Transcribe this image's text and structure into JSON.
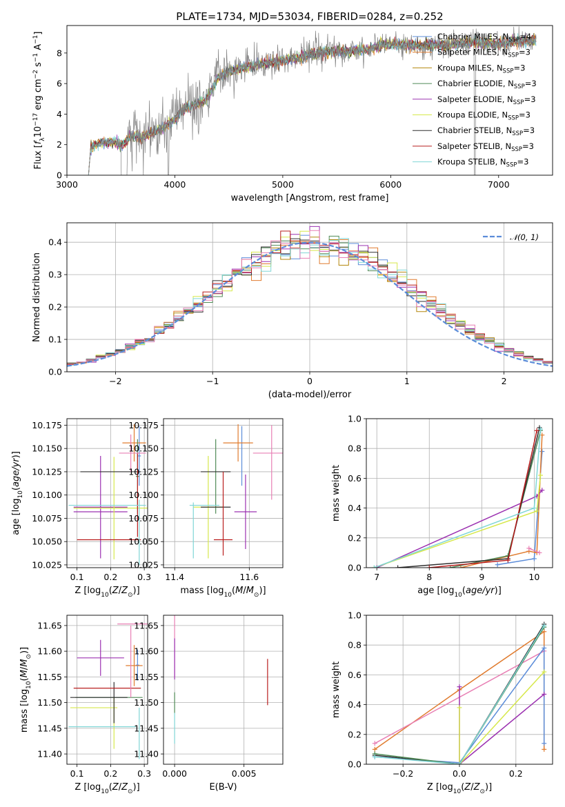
{
  "figure": {
    "title": "PLATE=1734, MJD=53034, FIBERID=0284, z=0.252"
  },
  "colors": {
    "Chabrier MILES": "#5b8cd9",
    "Salpeter MILES": "#e07b2e",
    "Kroupa MILES": "#b3860b",
    "Chabrier ELODIE": "#4f8a56",
    "Salpeter ELODIE": "#9b30b0",
    "Kroupa ELODIE": "#d6e84a",
    "Chabrier STELIB": "#2f2f2f",
    "Salpeter STELIB": "#b81c1c",
    "Kroupa STELIB": "#7fd6d6",
    "pink": "#e87fb4",
    "data": "#808080"
  },
  "legend_labels": {
    "spectrum": [
      "Chabrier MILES, N_SSP=4",
      "Salpeter MILES, N_SSP=3",
      "Kroupa MILES, N_SSP=3",
      "Chabrier ELODIE, N_SSP=3",
      "Salpeter ELODIE, N_SSP=3",
      "Kroupa ELODIE, N_SSP=3",
      "Chabrier STELIB, N_SSP=3",
      "Salpeter STELIB, N_SSP=3",
      "Kroupa STELIB, N_SSP=3"
    ],
    "normal": "𝒩(0, 1)"
  },
  "chart_data": [
    {
      "type": "line",
      "panel": "spectrum",
      "xlabel": "wavelength [Angstrom, rest frame]",
      "ylabel": "Flux [f_λ 10^-17 erg cm^-2 s^-1 A^-1]",
      "xlim": [
        3000,
        7500
      ],
      "ylim": [
        0,
        9.8
      ],
      "xticks": [
        3000,
        4000,
        5000,
        6000,
        7000
      ],
      "yticks": [
        0,
        2,
        4,
        6,
        8
      ],
      "model_continuum": {
        "x": [
          3200,
          3220,
          3300,
          3450,
          3500,
          3600,
          3700,
          3800,
          3900,
          4000,
          4100,
          4200,
          4300,
          4400,
          4500,
          4600,
          4800,
          5000,
          5200,
          5400,
          5600,
          5800,
          6000,
          6200,
          6400,
          6600,
          6800,
          7000,
          7200,
          7350
        ],
        "y": [
          0,
          1.8,
          2.1,
          2.2,
          1.9,
          2.6,
          2.5,
          2.8,
          3.1,
          3.7,
          4.4,
          4.6,
          5.0,
          6.4,
          6.8,
          7.0,
          7.3,
          7.5,
          7.8,
          8.1,
          8.1,
          8.3,
          8.6,
          8.5,
          8.5,
          8.6,
          8.7,
          8.6,
          8.8,
          8.8
        ]
      },
      "wavelength_range": [
        3200,
        7350
      ]
    },
    {
      "type": "line",
      "panel": "residual-histogram",
      "xlabel": "(data-model)/error",
      "ylabel": "Normed distribution",
      "xlim": [
        -2.5,
        2.5
      ],
      "ylim": [
        0,
        0.46
      ],
      "xticks": [
        -2,
        -1,
        0,
        1,
        2
      ],
      "yticks": [
        0.0,
        0.1,
        0.2,
        0.3,
        0.4
      ],
      "bins": 50,
      "normal_curve": {
        "mu": 0,
        "sigma": 1
      }
    },
    {
      "type": "scatter",
      "panel": "age-vs-Z",
      "xlabel": "Z [log10(Z/Z☉)]",
      "ylabel": "age [log10(age/yr)]",
      "xlim": [
        0.07,
        0.31
      ],
      "ylim": [
        10.022,
        10.182
      ],
      "xticks": [
        0.1,
        0.2,
        0.3
      ],
      "yticks": [
        10.025,
        10.05,
        10.075,
        10.1,
        10.125,
        10.15,
        10.175
      ],
      "points": [
        {
          "c": "Chabrier MILES",
          "x": 0.285,
          "y": 10.142,
          "xe": 0.005,
          "ye": 0.032
        },
        {
          "c": "Salpeter MILES",
          "x": 0.27,
          "y": 10.156,
          "xe": 0.035,
          "ye": 0.02
        },
        {
          "c": "Chabrier ELODIE",
          "x": 0.28,
          "y": 10.12,
          "xe": 0.005,
          "ye": 0.04
        },
        {
          "c": "Salpeter ELODIE",
          "x": 0.17,
          "y": 10.087,
          "xe": 0.08,
          "ye": 0.055
        },
        {
          "c": "Salpeter ELODIE",
          "x": 0.17,
          "y": 10.082,
          "xe": 0.08,
          "ye": 0.0
        },
        {
          "c": "Kroupa ELODIE",
          "x": 0.21,
          "y": 10.086,
          "xe": 0.12,
          "ye": 0.055
        },
        {
          "c": "Chabrier STELIB",
          "x": 0.2,
          "y": 10.125,
          "xe": 0.09,
          "ye": 0.0
        },
        {
          "c": "Salpeter STELIB",
          "x": 0.195,
          "y": 10.052,
          "xe": 0.095,
          "ye": 0.0
        },
        {
          "c": "Salpeter STELIB",
          "x": 0.28,
          "y": 10.1,
          "xe": 0.0,
          "ye": 0.045
        },
        {
          "c": "Kroupa STELIB",
          "x": 0.19,
          "y": 10.089,
          "xe": 0.115,
          "ye": 0.0
        },
        {
          "c": "pink",
          "x": 0.265,
          "y": 10.145,
          "xe": 0.04,
          "ye": 0.0
        },
        {
          "c": "pink",
          "x": 0.26,
          "y": 10.145,
          "xe": 0.0,
          "ye": 0.02
        },
        {
          "c": "Kroupa STELIB",
          "x": 0.285,
          "y": 10.06,
          "xe": 0.0,
          "ye": 0.035
        }
      ]
    },
    {
      "type": "scatter",
      "panel": "age-vs-mass",
      "xlabel": "mass [log10(M/M☉)]",
      "ylabel": "",
      "xlim": [
        11.37,
        11.69
      ],
      "ylim": [
        10.022,
        10.182
      ],
      "xticks": [
        11.4,
        11.6
      ],
      "yticks": [
        10.025,
        10.05,
        10.075,
        10.1,
        10.125,
        10.15,
        10.175
      ],
      "points": [
        {
          "c": "Chabrier MILES",
          "x": 11.58,
          "y": 10.142,
          "xe": 0.0,
          "ye": 0.032
        },
        {
          "c": "Salpeter MILES",
          "x": 11.57,
          "y": 10.156,
          "xe": 0.04,
          "ye": 0.02
        },
        {
          "c": "Chabrier ELODIE",
          "x": 11.51,
          "y": 10.12,
          "xe": 0.0,
          "ye": 0.04
        },
        {
          "c": "Salpeter ELODIE",
          "x": 11.59,
          "y": 10.082,
          "xe": 0.03,
          "ye": 0.0
        },
        {
          "c": "Salpeter ELODIE",
          "x": 11.59,
          "y": 10.082,
          "xe": 0.0,
          "ye": 0.04
        },
        {
          "c": "Kroupa ELODIE",
          "x": 11.49,
          "y": 10.087,
          "xe": 0.04,
          "ye": 0.055
        },
        {
          "c": "Chabrier STELIB",
          "x": 11.51,
          "y": 10.125,
          "xe": 0.04,
          "ye": 0.0
        },
        {
          "c": "Chabrier STELIB",
          "x": 11.51,
          "y": 10.087,
          "xe": 0.04,
          "ye": 0.0
        },
        {
          "c": "Salpeter STELIB",
          "x": 11.53,
          "y": 10.052,
          "xe": 0.025,
          "ye": 0.0
        },
        {
          "c": "Salpeter STELIB",
          "x": 11.53,
          "y": 10.08,
          "xe": 0.0,
          "ye": 0.045
        },
        {
          "c": "Kroupa STELIB",
          "x": 11.45,
          "y": 10.062,
          "xe": 0.0,
          "ye": 0.03
        },
        {
          "c": "Kroupa STELIB",
          "x": 11.48,
          "y": 10.089,
          "xe": 0.04,
          "ye": 0.0
        },
        {
          "c": "pink",
          "x": 11.65,
          "y": 10.145,
          "xe": 0.04,
          "ye": 0.0
        },
        {
          "c": "pink",
          "x": 11.66,
          "y": 10.135,
          "xe": 0.0,
          "ye": 0.04
        }
      ]
    },
    {
      "type": "line",
      "panel": "mass-weight-vs-age",
      "xlabel": "age [log10(age/yr)]",
      "ylabel": "mass weight",
      "xlim": [
        6.8,
        10.35
      ],
      "ylim": [
        0,
        1.0
      ],
      "xticks": [
        7,
        8,
        9,
        10
      ],
      "yticks": [
        0.0,
        0.2,
        0.4,
        0.6,
        0.8,
        1.0
      ],
      "series": [
        {
          "c": "Chabrier MILES",
          "x": [
            9.3,
            10.0,
            10.15
          ],
          "y": [
            0.02,
            0.06,
            0.78
          ]
        },
        {
          "c": "Salpeter MILES",
          "x": [
            8.6,
            9.9,
            10.05,
            10.15
          ],
          "y": [
            0.0,
            0.11,
            0.1,
            0.89
          ]
        },
        {
          "c": "Salpeter ELODIE",
          "x": [
            7.0,
            10.05,
            10.15
          ],
          "y": [
            0.0,
            0.48,
            0.52
          ]
        },
        {
          "c": "Kroupa ELODIE",
          "x": [
            6.95,
            10.05,
            10.12
          ],
          "y": [
            0.0,
            0.38,
            0.62
          ]
        },
        {
          "c": "Chabrier ELODIE",
          "x": [
            8.4,
            9.5,
            10.12
          ],
          "y": [
            0.0,
            0.08,
            0.92
          ]
        },
        {
          "c": "Chabrier STELIB",
          "x": [
            7.4,
            9.5,
            10.1
          ],
          "y": [
            0.0,
            0.06,
            0.94
          ]
        },
        {
          "c": "Salpeter STELIB",
          "x": [
            8.0,
            9.5,
            10.05
          ],
          "y": [
            0.0,
            0.05,
            0.92
          ]
        },
        {
          "c": "Kroupa STELIB",
          "x": [
            6.95,
            10.0,
            10.12
          ],
          "y": [
            0.0,
            0.4,
            0.93
          ]
        },
        {
          "c": "pink",
          "x": [
            9.9,
            10.1
          ],
          "y": [
            0.13,
            0.1
          ]
        }
      ]
    },
    {
      "type": "scatter",
      "panel": "mass-vs-Z",
      "xlabel": "Z [log10(Z/Z☉)]",
      "ylabel": "mass [log10(M/M☉)]",
      "xlim": [
        0.07,
        0.31
      ],
      "ylim": [
        11.38,
        11.67
      ],
      "xticks": [
        0.1,
        0.2,
        0.3
      ],
      "yticks": [
        11.4,
        11.45,
        11.5,
        11.55,
        11.6,
        11.65
      ],
      "points": [
        {
          "c": "Chabrier MILES",
          "x": 0.28,
          "y": 11.573,
          "xe": 0.005,
          "ye": 0.03
        },
        {
          "c": "Salpeter MILES",
          "x": 0.27,
          "y": 11.572,
          "xe": 0.025,
          "ye": 0.04
        },
        {
          "c": "Chabrier ELODIE",
          "x": 0.195,
          "y": 11.51,
          "xe": 0.1,
          "ye": 0.0
        },
        {
          "c": "Salpeter ELODIE",
          "x": 0.17,
          "y": 11.587,
          "xe": 0.07,
          "ye": 0.035
        },
        {
          "c": "Kroupa ELODIE",
          "x": 0.15,
          "y": 11.49,
          "xe": 0.07,
          "ye": 0.0
        },
        {
          "c": "Kroupa ELODIE",
          "x": 0.21,
          "y": 11.46,
          "xe": 0.0,
          "ye": 0.05
        },
        {
          "c": "Chabrier STELIB",
          "x": 0.165,
          "y": 11.51,
          "xe": 0.085,
          "ye": 0.0
        },
        {
          "c": "Chabrier STELIB",
          "x": 0.21,
          "y": 11.5,
          "xe": 0.0,
          "ye": 0.04
        },
        {
          "c": "Salpeter STELIB",
          "x": 0.19,
          "y": 11.528,
          "xe": 0.1,
          "ye": 0.0
        },
        {
          "c": "Kroupa STELIB",
          "x": 0.175,
          "y": 11.453,
          "xe": 0.1,
          "ye": 0.0
        },
        {
          "c": "Kroupa STELIB",
          "x": 0.285,
          "y": 11.44,
          "xe": 0.0,
          "ye": 0.05
        },
        {
          "c": "pink",
          "x": 0.265,
          "y": 11.653,
          "xe": 0.045,
          "ye": 0.0
        },
        {
          "c": "pink",
          "x": 0.26,
          "y": 11.58,
          "xe": 0.0,
          "ye": 0.07
        }
      ]
    },
    {
      "type": "scatter",
      "panel": "mass-vs-EBV",
      "xlabel": "E(B-V)",
      "ylabel": "",
      "xlim": [
        -0.0008,
        0.0078
      ],
      "ylim": [
        11.38,
        11.67
      ],
      "xticks": [
        0.0,
        0.005
      ],
      "yticks": [
        11.4,
        11.45,
        11.5,
        11.55,
        11.6,
        11.65
      ],
      "points": [
        {
          "c": "pink",
          "x": 0.0,
          "y": 11.61,
          "xe": 0.0,
          "ye": 0.06
        },
        {
          "c": "Salpeter ELODIE",
          "x": 0.0,
          "y": 11.585,
          "xe": 0.0,
          "ye": 0.04
        },
        {
          "c": "Chabrier ELODIE",
          "x": 0.0,
          "y": 11.5,
          "xe": 0.0,
          "ye": 0.02
        },
        {
          "c": "Kroupa STELIB",
          "x": 0.0,
          "y": 11.45,
          "xe": 0.0,
          "ye": 0.03
        },
        {
          "c": "Salpeter STELIB",
          "x": 0.0067,
          "y": 11.54,
          "xe": 0.0,
          "ye": 0.045
        }
      ]
    },
    {
      "type": "line",
      "panel": "mass-weight-vs-Z",
      "xlabel": "Z [log10(Z/Z☉)]",
      "ylabel": "mass weight",
      "xlim": [
        -0.33,
        0.33
      ],
      "ylim": [
        0,
        1.0
      ],
      "xticks": [
        -0.2,
        0.0,
        0.2
      ],
      "yticks": [
        0.0,
        0.2,
        0.4,
        0.6,
        0.8,
        1.0
      ],
      "series": [
        {
          "c": "Salpeter MILES",
          "x": [
            -0.3,
            0.0,
            0.3,
            0.3
          ],
          "y": [
            0.1,
            0.5,
            0.89,
            0.1
          ]
        },
        {
          "c": "pink",
          "x": [
            -0.3,
            0.3
          ],
          "y": [
            0.14,
            0.76
          ]
        },
        {
          "c": "Chabrier MILES",
          "x": [
            -0.3,
            0.0,
            0.3,
            0.3
          ],
          "y": [
            0.05,
            0.01,
            0.78,
            0.14
          ]
        },
        {
          "c": "Salpeter ELODIE",
          "x": [
            0.0,
            0.0,
            0.3
          ],
          "y": [
            0.52,
            0.0,
            0.47
          ]
        },
        {
          "c": "Kroupa ELODIE",
          "x": [
            0.0,
            0.0,
            0.3
          ],
          "y": [
            0.38,
            0.0,
            0.62
          ]
        },
        {
          "c": "Chabrier STELIB",
          "x": [
            -0.3,
            0.0,
            0.3
          ],
          "y": [
            0.06,
            0.0,
            0.94
          ]
        },
        {
          "c": "Chabrier ELODIE",
          "x": [
            -0.3,
            0.0,
            0.3
          ],
          "y": [
            0.07,
            0.0,
            0.92
          ]
        },
        {
          "c": "Kroupa STELIB",
          "x": [
            -0.3,
            0.0,
            0.3
          ],
          "y": [
            0.05,
            0.0,
            0.93
          ]
        }
      ]
    }
  ]
}
